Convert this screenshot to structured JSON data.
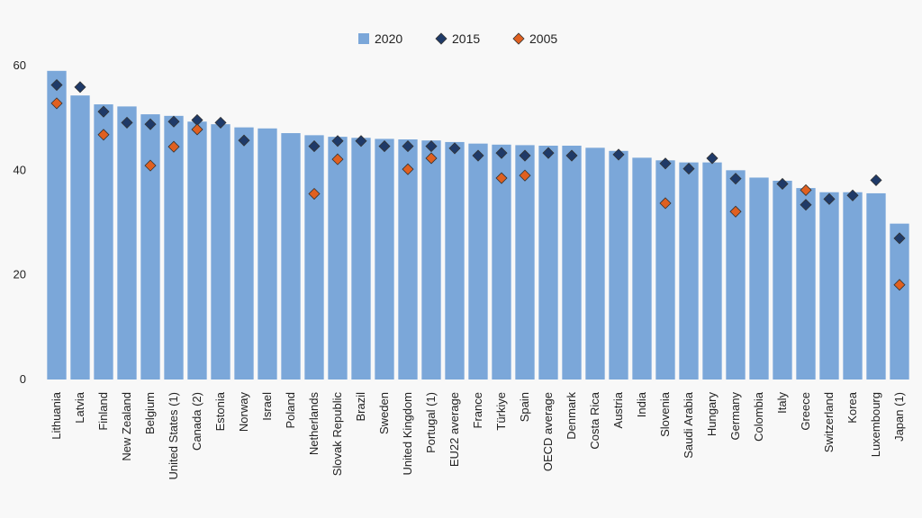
{
  "chart_data": {
    "type": "bar",
    "title": "",
    "xlabel": "",
    "ylabel": "",
    "ylim": [
      0,
      60
    ],
    "yticks": [
      0,
      20,
      40,
      60
    ],
    "legend_position": "top-center",
    "grid": false,
    "categories": [
      "Lithuania",
      "Latvia",
      "Finland",
      "New Zealand",
      "Belgium",
      "United States (1)",
      "Canada (2)",
      "Estonia",
      "Norway",
      "Israel",
      "Poland",
      "Netherlands",
      "Slovak Republic",
      "Brazil",
      "Sweden",
      "United Kingdom",
      "Portugal (1)",
      "EU22 average",
      "France",
      "Türkiye",
      "Spain",
      "OECD average",
      "Denmark",
      "Costa Rica",
      "Austria",
      "India",
      "Slovenia",
      "Saudi Arabia",
      "Hungary",
      "Germany",
      "Colombia",
      "Italy",
      "Greece",
      "Switzerland",
      "Korea",
      "Luxembourg",
      "Japan (1)"
    ],
    "series": [
      {
        "name": "2020",
        "kind": "bar",
        "color": "#7ba7d9",
        "values": [
          59.0,
          54.3,
          52.6,
          52.2,
          50.7,
          50.4,
          49.3,
          48.8,
          48.2,
          48.0,
          47.1,
          46.7,
          46.4,
          46.2,
          46.0,
          45.9,
          45.7,
          45.4,
          45.1,
          44.9,
          44.8,
          44.7,
          44.7,
          44.3,
          43.7,
          42.4,
          41.9,
          41.5,
          41.5,
          40.0,
          38.6,
          38.0,
          36.6,
          35.8,
          35.8,
          35.6,
          29.8
        ]
      },
      {
        "name": "2015",
        "kind": "marker",
        "shape": "diamond",
        "color": "#1f3a68",
        "values": [
          56.3,
          55.9,
          51.2,
          49.1,
          48.8,
          49.3,
          49.6,
          49.1,
          45.7,
          null,
          null,
          44.6,
          45.6,
          45.6,
          44.6,
          44.6,
          44.6,
          44.2,
          42.8,
          43.3,
          42.8,
          43.3,
          42.8,
          null,
          43.0,
          null,
          41.3,
          40.3,
          42.3,
          38.4,
          null,
          37.4,
          33.4,
          34.5,
          35.2,
          38.1,
          27.0
        ]
      },
      {
        "name": "2005",
        "kind": "marker",
        "shape": "diamond",
        "color": "#e06020",
        "values": [
          52.8,
          null,
          46.8,
          null,
          40.9,
          44.5,
          47.8,
          null,
          null,
          null,
          null,
          35.5,
          42.1,
          null,
          null,
          40.2,
          42.3,
          null,
          null,
          38.5,
          39.0,
          null,
          null,
          null,
          null,
          null,
          33.7,
          null,
          null,
          32.1,
          null,
          null,
          36.2,
          null,
          null,
          null,
          18.1
        ]
      }
    ]
  }
}
